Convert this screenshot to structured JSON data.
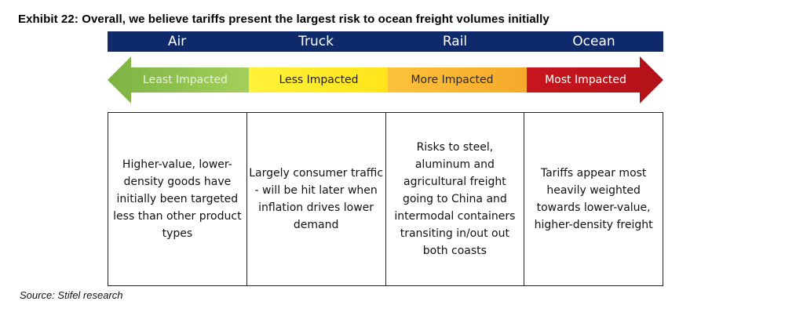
{
  "title": "Exhibit 22: Overall, we believe tariffs present the largest risk to ocean freight volumes initially",
  "modes": [
    "Air",
    "Truck",
    "Rail",
    "Ocean"
  ],
  "impact_labels": [
    "Least Impacted",
    "Less Impacted",
    "More Impacted",
    "Most Impacted"
  ],
  "descriptions": [
    "Higher-value, lower-density goods have initially been targeted less than other product types",
    "Largely consumer traffic - will be hit later when inflation drives lower demand",
    "Risks to steel, aluminum and agricultural freight going to China and intermodal containers transiting in/out out both coasts",
    "Tariffs appear most heavily weighted towards lower-value, higher-density freight"
  ],
  "source": "Source: Stifel research",
  "colors": {
    "header_bg": "#0f2a6b",
    "least": "#8cc152",
    "less": "#fff200",
    "more": "#fbb731",
    "most": "#c3141b"
  }
}
